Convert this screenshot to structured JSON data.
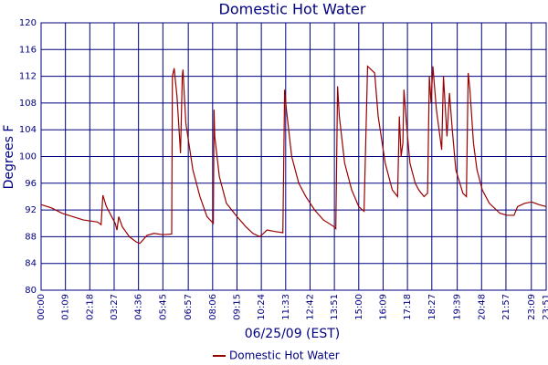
{
  "chart_data": {
    "type": "line",
    "title": "Domestic Hot Water",
    "xlabel": "06/25/09 (EST)",
    "ylabel": "Degrees F",
    "x": [
      "00:00",
      "00:30",
      "01:00",
      "01:30",
      "02:00",
      "02:40",
      "02:50",
      "02:55",
      "03:05",
      "03:20",
      "03:30",
      "03:35",
      "03:40",
      "03:50",
      "04:10",
      "04:30",
      "04:40",
      "05:00",
      "05:20",
      "05:45",
      "06:10",
      "06:12",
      "06:17",
      "06:25",
      "06:35",
      "06:40",
      "06:42",
      "06:50",
      "07:10",
      "07:30",
      "07:50",
      "08:08",
      "08:10",
      "08:12",
      "08:25",
      "08:45",
      "09:15",
      "09:40",
      "10:00",
      "10:20",
      "10:40",
      "11:00",
      "11:25",
      "11:30",
      "11:35",
      "11:50",
      "12:10",
      "12:30",
      "12:55",
      "13:20",
      "13:50",
      "13:55",
      "14:00",
      "14:05",
      "14:20",
      "14:40",
      "15:00",
      "15:15",
      "15:25",
      "15:35",
      "15:45",
      "15:55",
      "16:15",
      "16:35",
      "16:50",
      "16:55",
      "17:00",
      "17:05",
      "17:08",
      "17:15",
      "17:25",
      "17:40",
      "17:50",
      "18:05",
      "18:15",
      "18:20",
      "18:25",
      "18:30",
      "18:40",
      "18:55",
      "19:00",
      "19:10",
      "19:17",
      "19:25",
      "19:35",
      "19:55",
      "20:05",
      "20:10",
      "20:15",
      "20:25",
      "20:35",
      "20:50",
      "21:10",
      "21:40",
      "22:00",
      "22:20",
      "22:30",
      "22:50",
      "23:10",
      "23:30",
      "23:51"
    ],
    "series": [
      {
        "name": "Domestic Hot Water",
        "color": "#990000",
        "values": [
          92.8,
          92.3,
          91.5,
          91,
          90.5,
          90.2,
          89.8,
          94.2,
          92.5,
          91,
          90,
          89,
          91,
          89.5,
          88,
          87.2,
          87,
          88.2,
          88.5,
          88.3,
          88.4,
          112,
          113.2,
          109,
          100.5,
          112,
          113,
          105,
          98,
          94,
          91,
          90,
          107,
          103,
          97,
          93,
          91,
          89.5,
          88.5,
          88,
          89,
          88.8,
          88.6,
          110,
          107,
          100,
          96,
          94,
          92,
          90.5,
          89.5,
          89.2,
          110.5,
          106,
          99,
          95,
          92.5,
          91.8,
          113.5,
          113,
          112.5,
          106,
          99,
          95,
          94,
          106,
          100,
          102,
          110,
          105,
          99,
          96,
          95,
          94,
          94.5,
          112,
          108,
          113.5,
          107,
          101,
          112,
          103,
          109.5,
          104,
          98,
          94.5,
          94,
          112.5,
          110,
          102,
          98,
          95,
          93,
          91.5,
          91.2,
          91.2,
          92.5,
          93,
          93.2,
          92.8,
          92.5
        ]
      }
    ],
    "xlim": [
      "00:00",
      "23:51"
    ],
    "xticks": [
      "00:00",
      "01:09",
      "02:18",
      "03:27",
      "04:36",
      "05:45",
      "06:57",
      "08:06",
      "09:15",
      "10:24",
      "11:33",
      "12:42",
      "13:51",
      "15:00",
      "16:09",
      "17:18",
      "18:27",
      "19:39",
      "20:48",
      "21:57",
      "23:09",
      "23:51"
    ],
    "ylim": [
      80,
      120
    ],
    "yticks": [
      80,
      84,
      88,
      92,
      96,
      100,
      104,
      108,
      112,
      116,
      120
    ],
    "grid": true
  }
}
